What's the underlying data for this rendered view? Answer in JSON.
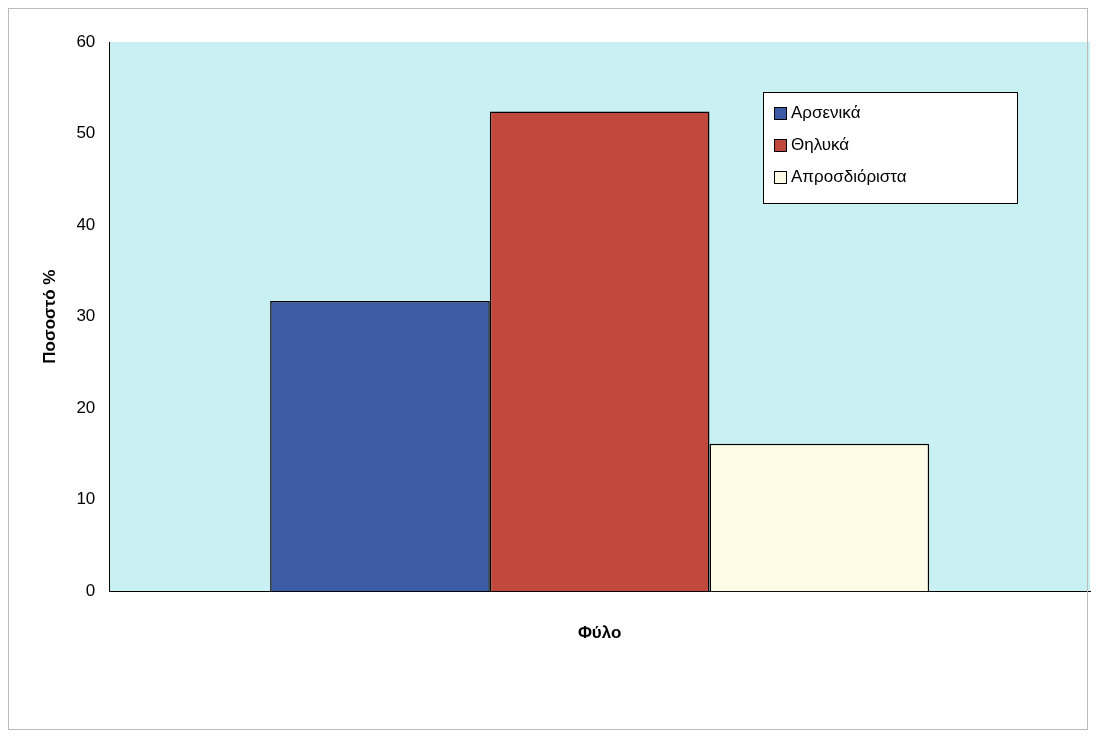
{
  "chart_data": {
    "type": "bar",
    "xlabel": "Φύλο",
    "ylabel": "Ποσοστό %",
    "categories": [
      null
    ],
    "series": [
      {
        "name": "Αρσενικά",
        "color": "#3c5aa6",
        "values": [
          31.7
        ]
      },
      {
        "name": "Θηλυκά",
        "color": "#c0483c",
        "values": [
          52.4
        ]
      },
      {
        "name": "Απροσδιόριστα",
        "color": "#fdfbe6",
        "values": [
          16.1
        ]
      }
    ],
    "ylim": [
      0,
      60
    ],
    "yticks": [
      0,
      10,
      20,
      30,
      40,
      50,
      60
    ],
    "grid": false,
    "legend": "top right"
  }
}
